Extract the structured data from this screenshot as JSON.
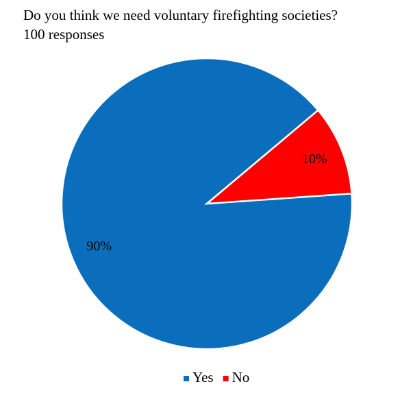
{
  "chart_data": {
    "type": "pie",
    "title": "Do you think we need voluntary firefighting societies?",
    "subtitle": "100 responses",
    "categories": [
      "Yes",
      "No"
    ],
    "values": [
      90,
      10
    ],
    "value_labels": [
      "90%",
      "10%"
    ],
    "colors": [
      "#0a6ebd",
      "#ff0000"
    ],
    "legend": "bottom"
  }
}
